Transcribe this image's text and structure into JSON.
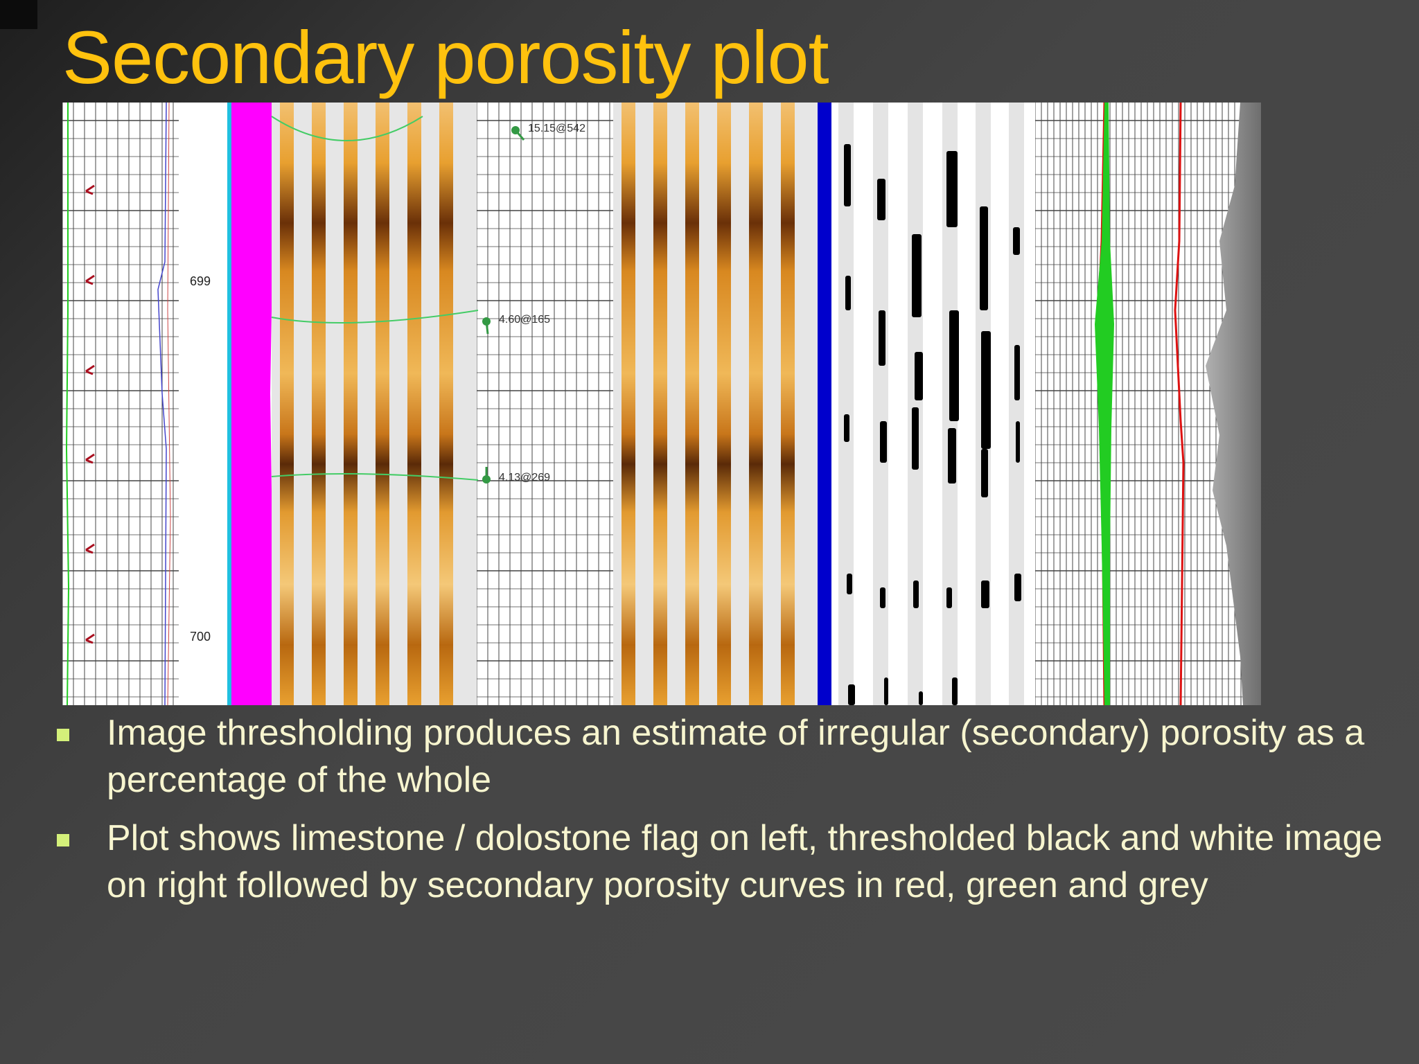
{
  "slide": {
    "title": "Secondary porosity plot",
    "figure": {
      "depth_labels": [
        "699",
        "700"
      ],
      "dip_tags": [
        "15.15@542",
        "4.60@165",
        "4.13@269"
      ],
      "colors": {
        "flag_magenta": "#ff00ff",
        "divider_blue": "#0000cc",
        "curve_green": "#22cc22",
        "curve_red": "#dd1111",
        "curve_grey": "#8a8a8a",
        "image_orange": "#e8a030",
        "image_dark": "#5a2a08"
      }
    },
    "bullets": [
      {
        "text": "Image thresholding produces an estimate of irregular (secondary) porosity as a percentage of the whole"
      },
      {
        "text": "Plot shows limestone / dolostone flag on left, thresholded black and white image on right followed by secondary porosity curves in red, green and grey"
      }
    ]
  }
}
